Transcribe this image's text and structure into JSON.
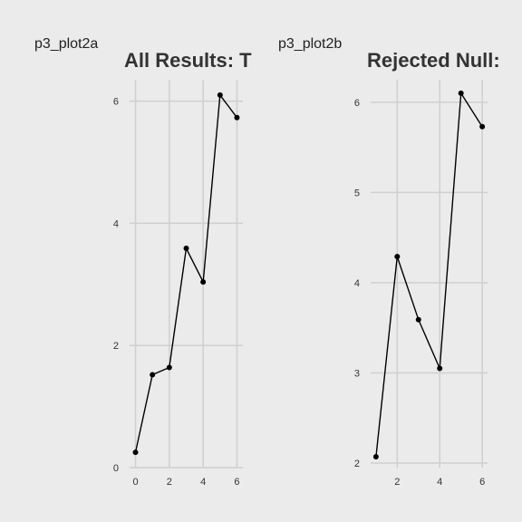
{
  "chart_data": [
    {
      "tag": "p3_plot2a",
      "title": "All Results: T",
      "type": "line",
      "x": [
        0,
        1,
        2,
        3,
        4,
        5,
        6
      ],
      "y": [
        0.25,
        1.52,
        1.64,
        3.59,
        3.04,
        6.1,
        5.73
      ],
      "xlim": [
        -0.35,
        6.35
      ],
      "ylim": [
        0,
        6.35
      ],
      "xticks": [
        0,
        2,
        4,
        6
      ],
      "yticks": [
        0,
        2,
        4,
        6
      ],
      "xlabel": "",
      "ylabel": "",
      "grid": true
    },
    {
      "tag": "p3_plot2b",
      "title": "Rejected Null:",
      "type": "line",
      "x": [
        1,
        2,
        3,
        4,
        5,
        6
      ],
      "y": [
        2.07,
        4.29,
        3.59,
        3.05,
        6.1,
        5.73
      ],
      "xlim": [
        0.75,
        6.25
      ],
      "ylim": [
        1.95,
        6.25
      ],
      "xticks": [
        2,
        4,
        6
      ],
      "yticks": [
        2,
        3,
        4,
        5,
        6
      ],
      "xlabel": "",
      "ylabel": "",
      "grid": true
    }
  ]
}
